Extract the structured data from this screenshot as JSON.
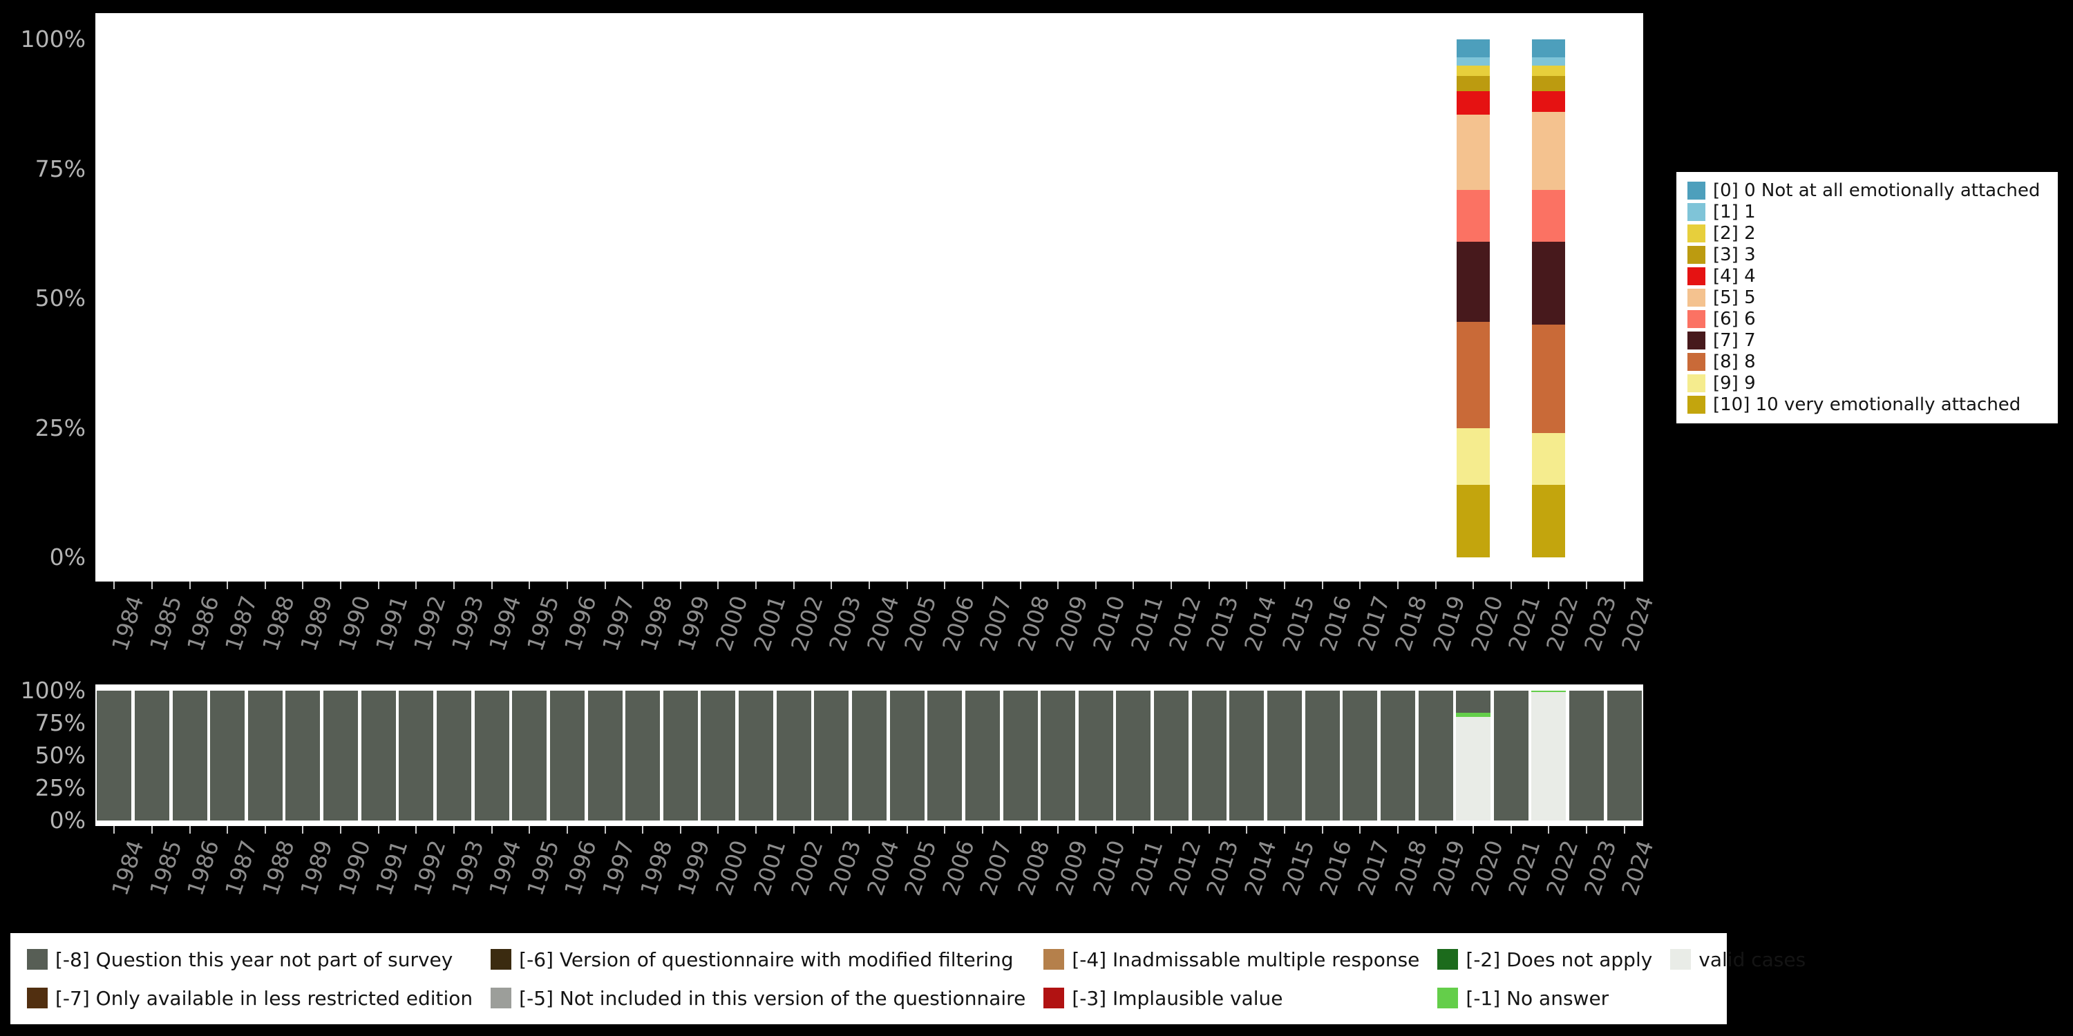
{
  "background_color": "#000000",
  "plot_background_color": "#ffffff",
  "chart_data": [
    {
      "type": "bar",
      "stacked": true,
      "title": "",
      "xlabel": "",
      "ylabel": "",
      "ylim": [
        0,
        100
      ],
      "yticks": [
        "100%",
        "75%",
        "50%",
        "25%",
        "0%"
      ],
      "grid": false,
      "legend_position": "right",
      "x": [
        "1984",
        "1985",
        "1986",
        "1987",
        "1988",
        "1989",
        "1990",
        "1991",
        "1992",
        "1993",
        "1994",
        "1995",
        "1996",
        "1997",
        "1998",
        "1999",
        "2000",
        "2001",
        "2002",
        "2003",
        "2004",
        "2005",
        "2006",
        "2007",
        "2008",
        "2009",
        "2010",
        "2011",
        "2012",
        "2013",
        "2014",
        "2015",
        "2016",
        "2017",
        "2018",
        "2019",
        "2020",
        "2021",
        "2022",
        "2023",
        "2024"
      ],
      "series": [
        {
          "name": "[0] 0 Not at all emotionally attached",
          "color": "#4d9fbc",
          "values_pct_by_year": {
            "2020": 3.5,
            "2022": 3.5
          }
        },
        {
          "name": "[1] 1",
          "color": "#7fc4d8",
          "values_pct_by_year": {
            "2020": 1.5,
            "2022": 1.5
          }
        },
        {
          "name": "[2] 2",
          "color": "#e7cf3c",
          "values_pct_by_year": {
            "2020": 2,
            "2022": 2
          }
        },
        {
          "name": "[3] 3",
          "color": "#bc9b10",
          "values_pct_by_year": {
            "2020": 3,
            "2022": 3
          }
        },
        {
          "name": "[4] 4",
          "color": "#e51212",
          "values_pct_by_year": {
            "2020": 4.5,
            "2022": 4
          }
        },
        {
          "name": "[5] 5",
          "color": "#f4c28f",
          "values_pct_by_year": {
            "2020": 14.5,
            "2022": 15
          }
        },
        {
          "name": "[6] 6",
          "color": "#fb7263",
          "values_pct_by_year": {
            "2020": 10,
            "2022": 10
          }
        },
        {
          "name": "[7] 7",
          "color": "#47191c",
          "values_pct_by_year": {
            "2020": 15.5,
            "2022": 16
          }
        },
        {
          "name": "[8] 8",
          "color": "#c96a38",
          "values_pct_by_year": {
            "2020": 20.5,
            "2022": 21
          }
        },
        {
          "name": "[9] 9",
          "color": "#f5ec8e",
          "values_pct_by_year": {
            "2020": 11,
            "2022": 10
          }
        },
        {
          "name": "[10] 10 very emotionally attached",
          "color": "#c3a50d",
          "values_pct_by_year": {
            "2020": 14,
            "2022": 14
          }
        }
      ],
      "stack_order_bottom_to_top": [
        "[10] 10 very emotionally attached",
        "[9] 9",
        "[8] 8",
        "[7] 7",
        "[6] 6",
        "[5] 5",
        "[4] 4",
        "[3] 3",
        "[2] 2",
        "[1] 1",
        "[0] 0 Not at all emotionally attached"
      ],
      "override_years": [
        "2020",
        "2022"
      ]
    },
    {
      "type": "bar",
      "stacked": true,
      "title": "",
      "xlabel": "",
      "ylabel": "",
      "ylim": [
        0,
        100
      ],
      "yticks": [
        "100%",
        "75%",
        "50%",
        "25%",
        "0%"
      ],
      "grid": false,
      "legend_position": "bottom",
      "x": [
        "1984",
        "1985",
        "1986",
        "1987",
        "1988",
        "1989",
        "1990",
        "1991",
        "1992",
        "1993",
        "1994",
        "1995",
        "1996",
        "1997",
        "1998",
        "1999",
        "2000",
        "2001",
        "2002",
        "2003",
        "2004",
        "2005",
        "2006",
        "2007",
        "2008",
        "2009",
        "2010",
        "2011",
        "2012",
        "2013",
        "2014",
        "2015",
        "2016",
        "2017",
        "2018",
        "2019",
        "2020",
        "2021",
        "2022",
        "2023",
        "2024"
      ],
      "series": [
        {
          "name": "[-8] Question this year not part of survey",
          "color": "#575e55",
          "default_pct": 100,
          "values_pct_by_year": {
            "2020": 17,
            "2022": 0
          }
        },
        {
          "name": "[-7] Only available in less restricted edition",
          "color": "#512f10",
          "values_pct_by_year": {}
        },
        {
          "name": "[-6] Version of questionnaire with modified filtering",
          "color": "#3b2b10",
          "values_pct_by_year": {}
        },
        {
          "name": "[-5] Not included in this version of the questionnaire",
          "color": "#9c9e9a",
          "values_pct_by_year": {}
        },
        {
          "name": "[-4] Inadmissable multiple response",
          "color": "#b5804b",
          "values_pct_by_year": {}
        },
        {
          "name": "[-3] Implausible value",
          "color": "#b11212",
          "values_pct_by_year": {}
        },
        {
          "name": "[-2] Does not apply",
          "color": "#1c6b1c",
          "values_pct_by_year": {}
        },
        {
          "name": "[-1] No answer",
          "color": "#64ce4a",
          "values_pct_by_year": {
            "2020": 3,
            "2022": 1
          }
        },
        {
          "name": "valid cases",
          "color": "#e9ece7",
          "values_pct_by_year": {
            "2020": 80,
            "2022": 99
          }
        }
      ],
      "stack_order_bottom_to_top": [
        "valid cases",
        "[-1] No answer",
        "[-2] Does not apply",
        "[-3] Implausible value",
        "[-4] Inadmissable multiple response",
        "[-5] Not included in this version of the questionnaire",
        "[-6] Version of questionnaire with modified filtering",
        "[-7] Only available in less restricted edition",
        "[-8] Question this year not part of survey"
      ],
      "override_years": [
        "2020",
        "2022"
      ]
    }
  ]
}
